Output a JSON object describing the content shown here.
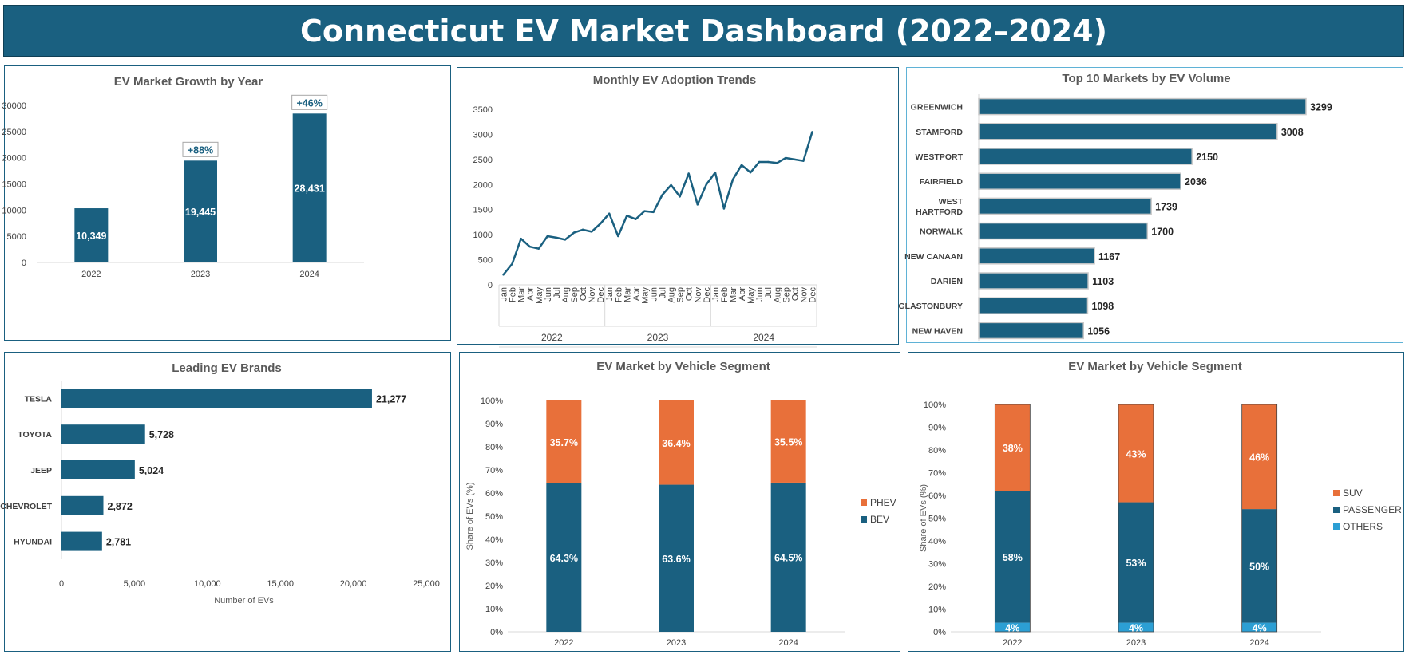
{
  "dashboard": {
    "title": "Connecticut EV Market Dashboard (2022–2024)"
  },
  "colors": {
    "primary": "#1a6080",
    "accent": "#e8703a",
    "light_blue": "#2c9fd4"
  },
  "chart_data": [
    {
      "id": "growth",
      "type": "bar",
      "title": "EV Market Growth by Year",
      "categories": [
        "2022",
        "2023",
        "2024"
      ],
      "values": [
        10349,
        19445,
        28431
      ],
      "value_labels": [
        "10,349",
        "19,445",
        "28,431"
      ],
      "growth_labels": [
        "",
        "+88%",
        "+46%"
      ],
      "ylim": [
        0,
        30000
      ],
      "yticks": [
        0,
        5000,
        10000,
        15000,
        20000,
        25000,
        30000
      ],
      "ytick_labels": [
        "0",
        "5000",
        "10000",
        "15000",
        "20000",
        "25000",
        "30000"
      ]
    },
    {
      "id": "monthly",
      "type": "line",
      "title": "Monthly EV Adoption Trends",
      "years": [
        "2022",
        "2023",
        "2024"
      ],
      "months": [
        "Jan",
        "Feb",
        "Mar",
        "Apr",
        "May",
        "Jun",
        "Jul",
        "Aug",
        "Sep",
        "Oct",
        "Nov",
        "Dec"
      ],
      "values": [
        200,
        420,
        920,
        760,
        720,
        970,
        940,
        900,
        1040,
        1100,
        1060,
        1220,
        1420,
        970,
        1380,
        1310,
        1470,
        1450,
        1790,
        1990,
        1760,
        2220,
        1600,
        2000,
        2240,
        1520,
        2100,
        2390,
        2240,
        2450,
        2450,
        2430,
        2530,
        2500,
        2470,
        3050
      ],
      "ylim": [
        0,
        3500
      ],
      "yticks": [
        0,
        500,
        1000,
        1500,
        2000,
        2500,
        3000,
        3500
      ],
      "ytick_labels": [
        "0",
        "500",
        "1000",
        "1500",
        "2000",
        "2500",
        "3000",
        "3500"
      ]
    },
    {
      "id": "top10",
      "type": "bar",
      "orientation": "horizontal",
      "title": "Top 10 Markets by EV Volume",
      "categories": [
        "GREENWICH",
        "STAMFORD",
        "WESTPORT",
        "FAIRFIELD",
        "WEST HARTFORD",
        "NORWALK",
        "NEW CANAAN",
        "DARIEN",
        "GLASTONBURY",
        "NEW HAVEN"
      ],
      "category_lines": [
        [
          "GREENWICH"
        ],
        [
          "STAMFORD"
        ],
        [
          "WESTPORT"
        ],
        [
          "FAIRFIELD"
        ],
        [
          "WEST",
          "HARTFORD"
        ],
        [
          "NORWALK"
        ],
        [
          "NEW CANAAN"
        ],
        [
          "DARIEN"
        ],
        [
          "GLASTONBURY"
        ],
        [
          "NEW HAVEN"
        ]
      ],
      "values": [
        3299,
        3008,
        2150,
        2036,
        1739,
        1700,
        1167,
        1103,
        1098,
        1056
      ],
      "value_labels": [
        "3299",
        "3008",
        "2150",
        "2036",
        "1739",
        "1700",
        "1167",
        "1103",
        "1098",
        "1056"
      ],
      "xlim": [
        0,
        3500
      ]
    },
    {
      "id": "brands",
      "type": "bar",
      "orientation": "horizontal",
      "title": "Leading EV Brands",
      "categories": [
        "TESLA",
        "TOYOTA",
        "JEEP",
        "CHEVROLET",
        "HYUNDAI"
      ],
      "values": [
        21277,
        5728,
        5024,
        2872,
        2781
      ],
      "value_labels": [
        "21,277",
        "5,728",
        "5,024",
        "2,872",
        "2,781"
      ],
      "xlim": [
        0,
        25000
      ],
      "xticks": [
        0,
        5000,
        10000,
        15000,
        20000,
        25000
      ],
      "xtick_labels": [
        "0",
        "5,000",
        "10,000",
        "15,000",
        "20,000",
        "25,000"
      ],
      "xlabel": "Number of EVs"
    },
    {
      "id": "powertrain",
      "type": "bar",
      "stacked": true,
      "title": "EV Market by Vehicle Segment",
      "ylabel": "Share of EVs (%)",
      "categories": [
        "2022",
        "2023",
        "2024"
      ],
      "series": [
        {
          "name": "BEV",
          "values": [
            64.3,
            63.6,
            64.5
          ],
          "labels": [
            "64.3%",
            "63.6%",
            "64.5%"
          ],
          "color": "#1a6080"
        },
        {
          "name": "PHEV",
          "values": [
            35.7,
            36.4,
            35.5
          ],
          "labels": [
            "35.7%",
            "36.4%",
            "35.5%"
          ],
          "color": "#e8703a"
        }
      ],
      "ylim": [
        0,
        100
      ],
      "yticks": [
        0,
        10,
        20,
        30,
        40,
        50,
        60,
        70,
        80,
        90,
        100
      ],
      "ytick_labels": [
        "0%",
        "10%",
        "20%",
        "30%",
        "40%",
        "50%",
        "60%",
        "70%",
        "80%",
        "90%",
        "100%"
      ],
      "legend": [
        "PHEV",
        "BEV"
      ]
    },
    {
      "id": "segment",
      "type": "bar",
      "stacked": true,
      "title": "EV Market by Vehicle Segment",
      "ylabel": "Share of EVs (%)",
      "categories": [
        "2022",
        "2023",
        "2024"
      ],
      "series": [
        {
          "name": "OTHERS",
          "values": [
            4,
            4,
            4
          ],
          "labels": [
            "4%",
            "4%",
            "4%"
          ],
          "color": "#2c9fd4"
        },
        {
          "name": "PASSENGER",
          "values": [
            58,
            53,
            50
          ],
          "labels": [
            "58%",
            "53%",
            "50%"
          ],
          "color": "#1a6080"
        },
        {
          "name": "SUV",
          "values": [
            38,
            43,
            46
          ],
          "labels": [
            "38%",
            "43%",
            "46%"
          ],
          "color": "#e8703a"
        }
      ],
      "ylim": [
        0,
        100
      ],
      "yticks": [
        0,
        10,
        20,
        30,
        40,
        50,
        60,
        70,
        80,
        90,
        100
      ],
      "ytick_labels": [
        "0%",
        "10%",
        "20%",
        "30%",
        "40%",
        "50%",
        "60%",
        "70%",
        "80%",
        "90%",
        "100%"
      ],
      "legend": [
        "SUV",
        "PASSENGER",
        "OTHERS"
      ]
    }
  ]
}
